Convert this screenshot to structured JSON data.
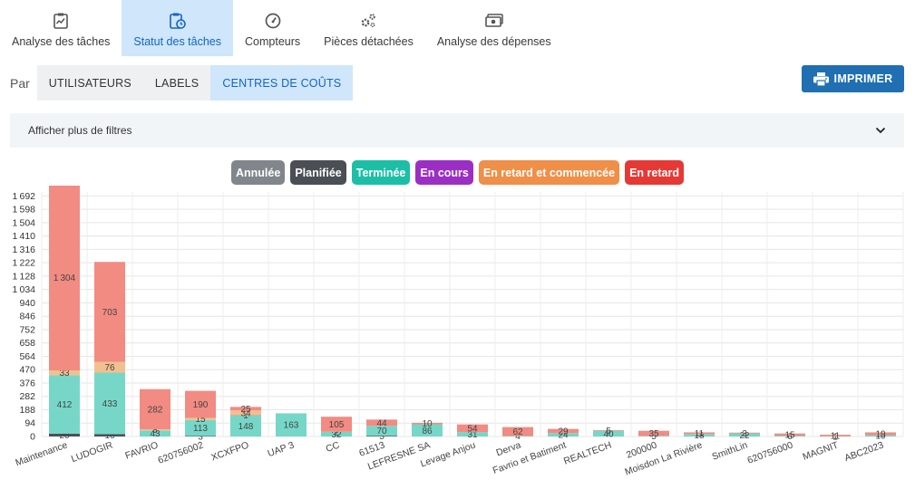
{
  "nav": {
    "tabs": [
      {
        "label": "Analyse des tâches",
        "icon": "task-analysis-icon",
        "active": false
      },
      {
        "label": "Statut des tâches",
        "icon": "task-status-icon",
        "active": true
      },
      {
        "label": "Compteurs",
        "icon": "gauge-icon",
        "active": false
      },
      {
        "label": "Pièces détachées",
        "icon": "gears-icon",
        "active": false
      },
      {
        "label": "Analyse des dépenses",
        "icon": "money-icon",
        "active": false
      }
    ]
  },
  "groupby": {
    "label": "Par",
    "options": [
      {
        "label": "UTILISATEURS",
        "active": false
      },
      {
        "label": "LABELS",
        "active": false
      },
      {
        "label": "CENTRES DE COÛTS",
        "active": true
      }
    ]
  },
  "print_label": "IMPRIMER",
  "filters_label": "Afficher plus de filtres",
  "colors": {
    "active_tab_bg": "#cfe6fb",
    "active_tab_text": "#1565c0",
    "print_button": "#1f6fb2"
  },
  "chart_data": {
    "type": "bar",
    "stacked": true,
    "ylim": [
      0,
      1720
    ],
    "yticks": [
      0,
      94,
      188,
      282,
      376,
      470,
      564,
      658,
      752,
      846,
      940,
      1034,
      1128,
      1222,
      1316,
      1410,
      1504,
      1598,
      1692
    ],
    "grid": true,
    "legend_position": "top-center",
    "categories": [
      "Maintenance",
      "LUDOGIR",
      "FAVRIO",
      "620756002",
      "XCXFPO",
      "UAP 3",
      "CC",
      "61513",
      "LEFRESNE SA",
      "Levage Anjou",
      "Derva",
      "Favrio et Batiment",
      "REALTECH",
      "200000",
      "Moisdon La Rivière",
      "SmithLin",
      "620756000",
      "MAGNIT",
      "ABC2023"
    ],
    "series": [
      {
        "name": "Annulée",
        "color": "#8a9096",
        "values": [
          0,
          0,
          0,
          0,
          0,
          0,
          0,
          0,
          0,
          0,
          0,
          0,
          0,
          0,
          0,
          0,
          0,
          0,
          0
        ]
      },
      {
        "name": "Planifiée",
        "color": "#4a5058",
        "values": [
          20,
          16,
          0,
          3,
          0,
          0,
          0,
          5,
          0,
          0,
          0,
          0,
          0,
          0,
          0,
          0,
          0,
          0,
          0
        ]
      },
      {
        "name": "Terminée",
        "color": "#76d7c8",
        "values": [
          412,
          433,
          43,
          113,
          148,
          163,
          32,
          70,
          86,
          31,
          4,
          24,
          40,
          5,
          18,
          22,
          6,
          1,
          10
        ]
      },
      {
        "name": "En cours",
        "color": "#a23ac8",
        "values": [
          0,
          0,
          0,
          0,
          1,
          0,
          0,
          0,
          0,
          0,
          0,
          0,
          0,
          0,
          0,
          0,
          0,
          0,
          0
        ]
      },
      {
        "name": "En retard et commencée",
        "color": "#f2c08e",
        "values": [
          33,
          76,
          8,
          15,
          34,
          0,
          2,
          0,
          0,
          0,
          0,
          0,
          0,
          0,
          0,
          0,
          0,
          0,
          0
        ]
      },
      {
        "name": "En retard",
        "color": "#f28b82",
        "values": [
          1304,
          703,
          282,
          190,
          25,
          0,
          105,
          44,
          10,
          54,
          62,
          29,
          5,
          35,
          11,
          3,
          15,
          11,
          19
        ]
      }
    ],
    "legend": [
      {
        "name": "Annulée",
        "color": "#80868b"
      },
      {
        "name": "Planifiée",
        "color": "#4a4f55"
      },
      {
        "name": "Terminée",
        "color": "#1cbfa6"
      },
      {
        "name": "En cours",
        "color": "#9c2fc3"
      },
      {
        "name": "En retard et commencée",
        "color": "#ef8f48"
      },
      {
        "name": "En retard",
        "color": "#e53935"
      }
    ]
  }
}
